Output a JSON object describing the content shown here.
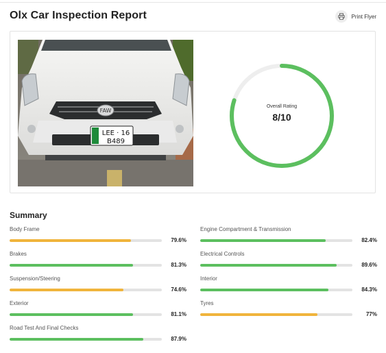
{
  "header": {
    "title": "Olx Car Inspection Report",
    "print_label": "Print Flyer"
  },
  "car_image": {
    "plate_line1": "LEE · 16",
    "plate_line2": "B489"
  },
  "rating": {
    "label": "Overall Rating",
    "value": "8/10",
    "fraction": 0.8,
    "color": "#5cbf5f"
  },
  "summary": {
    "title": "Summary",
    "items": [
      {
        "label": "Body Frame",
        "value": "79.6%",
        "percent": 79.6,
        "color": "#f0b43c"
      },
      {
        "label": "Engine Compartment & Transmission",
        "value": "82.4%",
        "percent": 82.4,
        "color": "#5cbf5f"
      },
      {
        "label": "Brakes",
        "value": "81.3%",
        "percent": 81.3,
        "color": "#5cbf5f"
      },
      {
        "label": "Electrical Controls",
        "value": "89.6%",
        "percent": 89.6,
        "color": "#5cbf5f"
      },
      {
        "label": "Suspension/Steering",
        "value": "74.6%",
        "percent": 74.6,
        "color": "#f0b43c"
      },
      {
        "label": "Interior",
        "value": "84.3%",
        "percent": 84.3,
        "color": "#5cbf5f"
      },
      {
        "label": "Exterior",
        "value": "81.1%",
        "percent": 81.1,
        "color": "#5cbf5f"
      },
      {
        "label": "Tyres",
        "value": "77%",
        "percent": 77,
        "color": "#f0b43c"
      },
      {
        "label": "Road Test And Final Checks",
        "value": "87.9%",
        "percent": 87.9,
        "color": "#5cbf5f"
      }
    ]
  },
  "colors": {
    "good": "#5cbf5f",
    "warning": "#f0b43c",
    "track": "#e3e3e3"
  }
}
